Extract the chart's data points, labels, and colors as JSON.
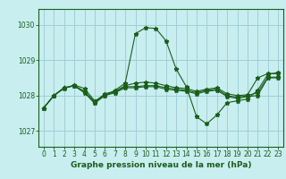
{
  "title": "Graphe pression niveau de la mer (hPa)",
  "bg_color": "#c8eef0",
  "grid_color": "#a0cfd8",
  "line_color": "#1a5e1a",
  "marker": "*",
  "marker_size": 3.5,
  "line_width": 0.8,
  "xlim": [
    -0.5,
    23.5
  ],
  "ylim": [
    1026.55,
    1030.45
  ],
  "yticks": [
    1027,
    1028,
    1029,
    1030
  ],
  "xticks": [
    0,
    1,
    2,
    3,
    4,
    5,
    6,
    7,
    8,
    9,
    10,
    11,
    12,
    13,
    14,
    15,
    16,
    17,
    18,
    19,
    20,
    21,
    22,
    23
  ],
  "tick_fontsize": 5.5,
  "title_fontsize": 6.5,
  "series": [
    [
      1027.65,
      1028.0,
      1028.2,
      1028.3,
      1028.2,
      1027.85,
      1028.0,
      1028.15,
      1028.35,
      1029.75,
      1029.92,
      1029.9,
      1029.55,
      1028.75,
      1028.25,
      1027.4,
      1027.2,
      1027.45,
      1027.8,
      1027.85,
      1027.9,
      1028.15,
      1028.6,
      1028.65
    ],
    [
      1027.65,
      1028.0,
      1028.22,
      1028.28,
      1028.12,
      1027.82,
      1028.05,
      1028.12,
      1028.28,
      1028.35,
      1028.38,
      1028.35,
      1028.28,
      1028.22,
      1028.2,
      1028.12,
      1028.18,
      1028.22,
      1028.05,
      1028.0,
      1028.02,
      1028.5,
      1028.62,
      1028.62
    ],
    [
      1027.65,
      1028.0,
      1028.22,
      1028.28,
      1028.1,
      1027.8,
      1028.02,
      1028.1,
      1028.25,
      1028.25,
      1028.28,
      1028.28,
      1028.22,
      1028.18,
      1028.15,
      1028.08,
      1028.15,
      1028.18,
      1028.0,
      1027.95,
      1028.0,
      1028.08,
      1028.52,
      1028.52
    ],
    [
      1027.65,
      1028.0,
      1028.22,
      1028.27,
      1028.08,
      1027.78,
      1028.0,
      1028.08,
      1028.22,
      1028.22,
      1028.25,
      1028.25,
      1028.18,
      1028.15,
      1028.12,
      1028.05,
      1028.12,
      1028.15,
      1027.97,
      1027.92,
      1027.97,
      1028.0,
      1028.5,
      1028.5
    ]
  ]
}
